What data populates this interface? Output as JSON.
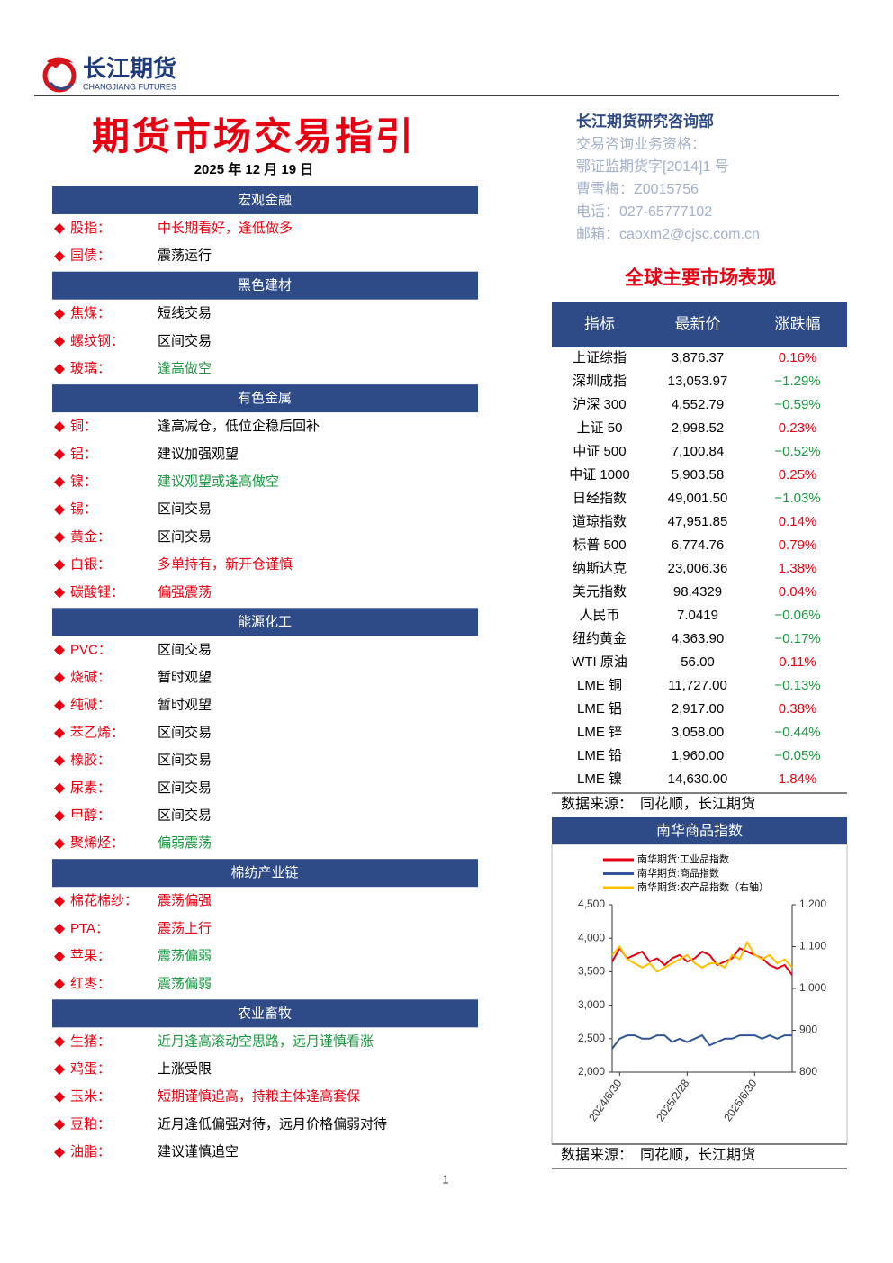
{
  "header": {
    "logo_name": "长江期货",
    "logo_sub": "CHANGJIANG FUTURES"
  },
  "title": "期货市场交易指引",
  "date": "2025 年 12 月 19 日",
  "sections": [
    {
      "title": "宏观金融",
      "items": [
        {
          "name": "股指：",
          "advice": "中长期看好，逢低做多",
          "color": "#e60012"
        },
        {
          "name": "国债：",
          "advice": "震荡运行",
          "color": "#000000"
        }
      ]
    },
    {
      "title": "黑色建材",
      "items": [
        {
          "name": "焦煤：",
          "advice": "短线交易",
          "color": "#000000"
        },
        {
          "name": "螺纹钢：",
          "advice": "区间交易",
          "color": "#000000"
        },
        {
          "name": "玻璃：",
          "advice": "逢高做空",
          "color": "#1a9641"
        }
      ]
    },
    {
      "title": "有色金属",
      "items": [
        {
          "name": "铜：",
          "advice": "逢高减仓，低位企稳后回补",
          "color": "#000000"
        },
        {
          "name": "铝：",
          "advice": "建议加强观望",
          "color": "#000000"
        },
        {
          "name": "镍：",
          "advice": "建议观望或逢高做空",
          "color": "#1a9641"
        },
        {
          "name": "锡：",
          "advice": "区间交易",
          "color": "#000000"
        },
        {
          "name": "黄金：",
          "advice": "区间交易",
          "color": "#000000"
        },
        {
          "name": "白银：",
          "advice": "多单持有，新开仓谨慎",
          "color": "#e60012"
        },
        {
          "name": "碳酸锂：",
          "advice": "偏强震荡",
          "color": "#e60012"
        }
      ]
    },
    {
      "title": "能源化工",
      "items": [
        {
          "name": "PVC：",
          "advice": "区间交易",
          "color": "#000000"
        },
        {
          "name": "烧碱：",
          "advice": "暂时观望",
          "color": "#000000"
        },
        {
          "name": "纯碱：",
          "advice": "暂时观望",
          "color": "#000000"
        },
        {
          "name": "苯乙烯：",
          "advice": "区间交易",
          "color": "#000000"
        },
        {
          "name": "橡胶：",
          "advice": "区间交易",
          "color": "#000000"
        },
        {
          "name": "尿素：",
          "advice": "区间交易",
          "color": "#000000"
        },
        {
          "name": "甲醇：",
          "advice": "区间交易",
          "color": "#000000"
        },
        {
          "name": "聚烯烃：",
          "advice": "偏弱震荡",
          "color": "#1a9641"
        }
      ]
    },
    {
      "title": "棉纺产业链",
      "items": [
        {
          "name": "棉花棉纱：",
          "advice": "震荡偏强",
          "color": "#e60012"
        },
        {
          "name": "PTA：",
          "advice": "震荡上行",
          "color": "#e60012"
        },
        {
          "name": "苹果：",
          "advice": "震荡偏弱",
          "color": "#1a9641"
        },
        {
          "name": "红枣：",
          "advice": "震荡偏弱",
          "color": "#1a9641"
        }
      ]
    },
    {
      "title": "农业畜牧",
      "items": [
        {
          "name": "生猪：",
          "advice": "近月逢高滚动空思路，远月谨慎看涨",
          "color": "#1a9641"
        },
        {
          "name": "鸡蛋：",
          "advice": "上涨受限",
          "color": "#000000"
        },
        {
          "name": "玉米：",
          "advice": "短期谨慎追高，持粮主体逢高套保",
          "color": "#e60012"
        },
        {
          "name": "豆粕：",
          "advice": "近月逢低偏强对待，远月价格偏弱对待",
          "color": "#000000"
        },
        {
          "name": "油脂：",
          "advice": "建议谨慎追空",
          "color": "#000000"
        }
      ]
    }
  ],
  "contact": {
    "dept": "长江期货研究咨询部",
    "lines": [
      "交易咨询业务资格：",
      "鄂证监期货字[2014]1 号",
      "曹雪梅：Z0015756",
      "电话：027-65777102",
      "邮箱：caoxm2@cjsc.com.cn"
    ]
  },
  "market": {
    "title": "全球主要市场表现",
    "columns": [
      "指标",
      "最新价",
      "涨跌幅"
    ],
    "rows": [
      [
        "上证综指",
        "3,876.37",
        "0.16%"
      ],
      [
        "深圳成指",
        "13,053.97",
        "−1.29%"
      ],
      [
        "沪深 300",
        "4,552.79",
        "−0.59%"
      ],
      [
        "上证 50",
        "2,998.52",
        "0.23%"
      ],
      [
        "中证 500",
        "7,100.84",
        "−0.52%"
      ],
      [
        "中证 1000",
        "5,903.58",
        "0.25%"
      ],
      [
        "日经指数",
        "49,001.50",
        "−1.03%"
      ],
      [
        "道琼指数",
        "47,951.85",
        "0.14%"
      ],
      [
        "标普 500",
        "6,774.76",
        "0.79%"
      ],
      [
        "纳斯达克",
        "23,006.36",
        "1.38%"
      ],
      [
        "美元指数",
        "98.4329",
        "0.04%"
      ],
      [
        "人民币",
        "7.0419",
        "−0.06%"
      ],
      [
        "纽约黄金",
        "4,363.90",
        "−0.17%"
      ],
      [
        "WTI 原油",
        "56.00",
        "0.11%"
      ],
      [
        "LME 铜",
        "11,727.00",
        "−0.13%"
      ],
      [
        "LME 铝",
        "2,917.00",
        "0.38%"
      ],
      [
        "LME 锌",
        "3,058.00",
        "−0.44%"
      ],
      [
        "LME 铅",
        "1,960.00",
        "−0.05%"
      ],
      [
        "LME 镍",
        "14,630.00",
        "1.84%"
      ]
    ],
    "source": "数据来源：　同花顺，长江期货"
  },
  "chart": {
    "type": "line",
    "title": "南华商品指数",
    "series": [
      {
        "name": "南华期货:工业品指数",
        "color": "#e60012",
        "values": [
          3650,
          3850,
          3700,
          3750,
          3800,
          3650,
          3700,
          3600,
          3700,
          3750,
          3650,
          3700,
          3800,
          3750,
          3600,
          3650,
          3700,
          3850,
          3800,
          3750,
          3700,
          3600,
          3550,
          3600,
          3450
        ]
      },
      {
        "name": "南华期货:商品指数",
        "color": "#2f5597",
        "values": [
          2350,
          2500,
          2550,
          2550,
          2500,
          2500,
          2550,
          2550,
          2450,
          2500,
          2450,
          2500,
          2550,
          2400,
          2450,
          2500,
          2500,
          2550,
          2550,
          2550,
          2500,
          2550,
          2500,
          2550,
          2550
        ]
      },
      {
        "name": "南华期货:农产品指数（右轴）",
        "color": "#ffc000",
        "axis": "y2",
        "values": [
          1080,
          1100,
          1070,
          1060,
          1050,
          1060,
          1040,
          1050,
          1060,
          1070,
          1080,
          1060,
          1050,
          1060,
          1060,
          1050,
          1080,
          1070,
          1110,
          1080,
          1070,
          1080,
          1060,
          1070,
          1050
        ]
      }
    ],
    "ylim": [
      2000,
      4500
    ],
    "yticks": [
      {
        "value": 2000,
        "label": "2,000"
      },
      {
        "value": 2500,
        "label": "2,500"
      },
      {
        "value": 3000,
        "label": "3,000"
      },
      {
        "value": 3500,
        "label": "3,500"
      },
      {
        "value": 4000,
        "label": "4,000"
      },
      {
        "value": 4500,
        "label": "4,500"
      }
    ],
    "y2lim": [
      800,
      1200
    ],
    "y2ticks": [
      800,
      900,
      {
        "value": 1000,
        "label": "1,000"
      },
      {
        "value": 1100,
        "label": "1,100"
      },
      {
        "value": 1200,
        "label": "1,200"
      }
    ],
    "xticks": [
      {
        "value": 1,
        "label": "2024/6/30"
      },
      {
        "value": 10,
        "label": "2025/2/28"
      },
      {
        "value": 19,
        "label": "2025/6/30"
      }
    ],
    "source": "数据来源：　同花顺，长江期货"
  },
  "page_number": "1"
}
